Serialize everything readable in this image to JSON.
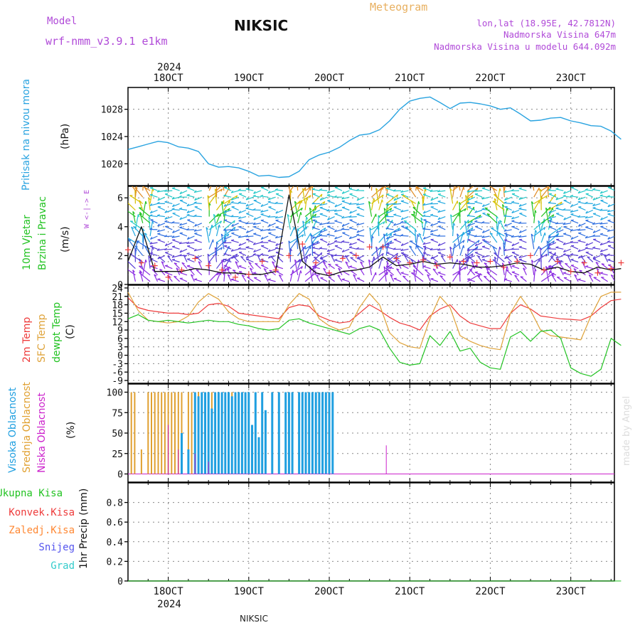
{
  "header": {
    "model_label": "Model",
    "model_value": "wrf-nmm_v3.9.1  e1km",
    "station": "NIKSIC",
    "product": "Meteogram",
    "lonlat": "lon,lat (18.95E, 42.7812N)",
    "elevation": "Nadmorska Visina 647m",
    "model_elevation": "Nadmorska Visina u modelu 644.092m",
    "footer_station": "NIKSIC",
    "watermark": "made by Angel"
  },
  "colors": {
    "pressure": "#29a3e0",
    "temp2m": "#ee3b3b",
    "sfc_temp": "#dfa33a",
    "dewpoint": "#22c322",
    "high_cloud": "#1f9fe0",
    "mid_cloud": "#e0a030",
    "low_cloud": "#cc22cc",
    "precip_total": "#22c322",
    "precip_conv": "#ee3b3b",
    "precip_frozen": "#ff8833",
    "snow": "#5555ee",
    "graupel": "#33cccc",
    "gust": "#ee3b3b",
    "wind_speed": "#111111",
    "header_purple": "#b04ad8",
    "header_orange": "#e8b060"
  },
  "time_axis": {
    "year": "2024",
    "day_labels": [
      "18OCT",
      "19OCT",
      "20OCT",
      "21OCT",
      "22OCT",
      "23OCT"
    ],
    "day_starts": [
      0,
      24,
      48,
      72,
      96,
      120
    ],
    "range_hours": [
      -12,
      133
    ]
  },
  "chart_data": [
    {
      "type": "line",
      "panel": "pressure",
      "title": "Pritisak na nivou mora",
      "ylabel": "(hPa)",
      "ylim": [
        1016.8,
        1031.2
      ],
      "yticks": [
        1020,
        1024,
        1028
      ],
      "grid": true,
      "series": [
        {
          "name": "Pritisak na nivou mora",
          "x": [
            -12,
            -9,
            -6,
            -3,
            0,
            3,
            6,
            9,
            12,
            15,
            18,
            21,
            24,
            27,
            30,
            33,
            36,
            39,
            42,
            45,
            48,
            51,
            54,
            57,
            60,
            63,
            66,
            69,
            72,
            75,
            78,
            81,
            84,
            87,
            90,
            93,
            96,
            99,
            102,
            105,
            108,
            111,
            114,
            117,
            120,
            123,
            126,
            129,
            132,
            135
          ],
          "values": [
            1022.1,
            1022.5,
            1022.9,
            1023.3,
            1023.1,
            1022.5,
            1022.3,
            1021.8,
            1020.0,
            1019.5,
            1019.6,
            1019.4,
            1018.9,
            1018.2,
            1018.3,
            1018.0,
            1018.1,
            1018.9,
            1020.6,
            1021.3,
            1021.7,
            1022.4,
            1023.4,
            1024.2,
            1024.4,
            1025.0,
            1026.3,
            1028.0,
            1029.2,
            1029.6,
            1029.8,
            1029.0,
            1028.1,
            1028.9,
            1029.0,
            1028.8,
            1028.5,
            1028.0,
            1028.2,
            1027.3,
            1026.3,
            1026.4,
            1026.7,
            1026.8,
            1026.3,
            1026.0,
            1025.6,
            1025.5,
            1024.8,
            1023.6
          ]
        }
      ]
    },
    {
      "type": "line",
      "panel": "wind",
      "title": "10m Vjetar Brzina i Pravac",
      "ylabel": "(m/s)",
      "compass": "W <-|-> E",
      "ylim": [
        0,
        6.8
      ],
      "yticks": [
        0,
        2,
        4,
        6
      ],
      "grid": true,
      "series": [
        {
          "name": "Brzina",
          "x": [
            -12,
            -8,
            -4,
            0,
            4,
            8,
            12,
            16,
            20,
            24,
            28,
            32,
            36,
            40,
            44,
            48,
            52,
            56,
            60,
            64,
            68,
            72,
            76,
            80,
            84,
            88,
            92,
            96,
            100,
            104,
            108,
            112,
            116,
            120,
            124,
            128,
            132,
            135
          ],
          "values": [
            1.6,
            4.0,
            0.9,
            0.9,
            0.9,
            1.1,
            1.0,
            0.8,
            0.8,
            0.7,
            0.7,
            0.9,
            6.2,
            1.6,
            0.8,
            0.6,
            0.9,
            1.0,
            1.2,
            1.9,
            1.3,
            1.4,
            1.6,
            1.4,
            1.5,
            1.4,
            1.2,
            1.2,
            1.3,
            1.5,
            1.4,
            1.0,
            1.2,
            0.9,
            0.8,
            1.2,
            1.0,
            1.1
          ]
        },
        {
          "name": "Udar",
          "x": [
            -12,
            -8,
            -4,
            0,
            4,
            8,
            12,
            16,
            20,
            24,
            28,
            32,
            36,
            40,
            44,
            48,
            52,
            56,
            60,
            64,
            68,
            72,
            76,
            80,
            84,
            88,
            92,
            96,
            100,
            104,
            108,
            112,
            116,
            120,
            124,
            128,
            132,
            135
          ],
          "values": [
            2.4,
            1.5,
            1.3,
            0.5,
            1.0,
            1.8,
            1.3,
            1.0,
            0.5,
            0.7,
            1.6,
            1.0,
            2.0,
            2.8,
            1.5,
            0.8,
            1.8,
            2.0,
            2.6,
            2.6,
            1.8,
            1.5,
            1.7,
            1.3,
            1.9,
            1.6,
            1.5,
            1.6,
            1.2,
            1.6,
            2.0,
            1.0,
            1.6,
            0.9,
            1.5,
            0.8,
            1.1,
            1.5
          ]
        }
      ]
    },
    {
      "type": "line",
      "panel": "temperature",
      "ylabel": "(C)",
      "series_labels": [
        "2m Temp",
        "SFC Temp",
        "dewpt Temp"
      ],
      "ylim": [
        -10,
        25
      ],
      "yticks": [
        -9,
        -6,
        -3,
        0,
        3,
        6,
        9,
        12,
        15,
        18,
        21,
        24
      ],
      "grid": true,
      "series": [
        {
          "name": "2m Temp",
          "x": [
            -12,
            -9,
            -6,
            -3,
            0,
            3,
            6,
            9,
            12,
            15,
            18,
            21,
            24,
            27,
            30,
            33,
            36,
            39,
            42,
            45,
            48,
            51,
            54,
            57,
            60,
            63,
            66,
            69,
            72,
            75,
            78,
            81,
            84,
            87,
            90,
            93,
            96,
            99,
            102,
            105,
            108,
            111,
            114,
            117,
            120,
            123,
            126,
            129,
            132,
            135
          ],
          "values": [
            20.5,
            17.0,
            16.0,
            15.5,
            15.0,
            15.0,
            14.5,
            15.0,
            18.0,
            18.5,
            17.5,
            15.0,
            14.5,
            14.0,
            13.5,
            13.0,
            17.0,
            18.0,
            17.5,
            14.0,
            12.5,
            11.5,
            12.0,
            15.0,
            18.0,
            16.0,
            13.5,
            11.5,
            10.5,
            9.0,
            14.0,
            16.5,
            18.0,
            14.0,
            11.5,
            10.5,
            9.5,
            9.5,
            15.0,
            18.0,
            16.5,
            14.0,
            13.5,
            13.0,
            12.8,
            12.5,
            14.0,
            17.0,
            19.5,
            20.0
          ]
        },
        {
          "name": "SFC Temp",
          "x": [
            -12,
            -9,
            -6,
            -3,
            0,
            3,
            6,
            9,
            12,
            15,
            18,
            21,
            24,
            27,
            30,
            33,
            36,
            39,
            42,
            45,
            48,
            51,
            54,
            57,
            60,
            63,
            66,
            69,
            72,
            75,
            78,
            81,
            84,
            87,
            90,
            93,
            96,
            99,
            102,
            105,
            108,
            111,
            114,
            117,
            120,
            123,
            126,
            129,
            132,
            135
          ],
          "values": [
            22.5,
            16.0,
            12.5,
            12.0,
            11.5,
            12.0,
            14.0,
            19.0,
            22.0,
            20.0,
            15.5,
            13.0,
            12.0,
            12.0,
            12.0,
            12.0,
            18.0,
            22.0,
            20.0,
            13.0,
            10.5,
            9.0,
            10.0,
            17.0,
            22.0,
            18.0,
            8.0,
            4.5,
            3.0,
            2.5,
            13.0,
            21.0,
            17.0,
            7.0,
            5.0,
            3.5,
            2.5,
            2.0,
            15.0,
            21.0,
            16.0,
            9.0,
            7.0,
            6.5,
            6.0,
            5.5,
            14.0,
            21.0,
            22.5,
            22.5
          ]
        },
        {
          "name": "dewpt Temp",
          "x": [
            -12,
            -9,
            -6,
            -3,
            0,
            3,
            6,
            9,
            12,
            15,
            18,
            21,
            24,
            27,
            30,
            33,
            36,
            39,
            42,
            45,
            48,
            51,
            54,
            57,
            60,
            63,
            66,
            69,
            72,
            75,
            78,
            81,
            84,
            87,
            90,
            93,
            96,
            99,
            102,
            105,
            108,
            111,
            114,
            117,
            120,
            123,
            126,
            129,
            132,
            135
          ],
          "values": [
            13.0,
            14.5,
            12.5,
            12.0,
            12.5,
            12.0,
            11.5,
            12.0,
            12.5,
            12.0,
            12.0,
            11.0,
            10.5,
            9.5,
            9.0,
            9.5,
            12.5,
            13.0,
            11.5,
            10.5,
            9.5,
            8.5,
            7.5,
            9.5,
            10.5,
            9.0,
            2.5,
            -2.5,
            -3.5,
            -3.0,
            7.0,
            3.5,
            8.5,
            1.5,
            2.5,
            -2.5,
            -4.5,
            -5.0,
            6.5,
            8.5,
            5.0,
            8.5,
            9.0,
            6.0,
            -4.5,
            -6.5,
            -7.5,
            -5.0,
            6.0,
            3.5
          ]
        }
      ]
    },
    {
      "type": "bar",
      "panel": "cloud",
      "ylabel": "(%)",
      "series_labels": [
        "Visoka Oblacnost",
        "Srednja Oblacnost",
        "Niska Oblacnost"
      ],
      "ylim": [
        -10,
        110
      ],
      "yticks": [
        0,
        25,
        50,
        75,
        100
      ],
      "grid": true,
      "series": [
        {
          "name": "Visoka Oblacnost",
          "x": [
            4,
            6,
            8,
            9,
            10,
            11,
            12,
            13,
            14,
            15,
            16,
            17,
            18,
            19,
            20,
            21,
            22,
            23,
            24,
            25,
            26,
            27,
            28,
            29,
            31,
            33,
            35,
            36,
            37,
            39,
            40,
            41,
            42,
            43,
            44,
            45,
            46,
            47,
            48,
            49
          ],
          "values": [
            50,
            30,
            100,
            95,
            100,
            100,
            100,
            80,
            100,
            100,
            100,
            100,
            100,
            95,
            100,
            100,
            100,
            100,
            100,
            60,
            100,
            45,
            100,
            78,
            100,
            100,
            100,
            100,
            100,
            100,
            100,
            100,
            100,
            100,
            100,
            100,
            100,
            100,
            100,
            100
          ]
        },
        {
          "name": "Srednja Oblacnost",
          "x": [
            -11,
            -10,
            -8,
            -6,
            -5,
            -4,
            -3,
            -2,
            -1,
            0,
            1,
            2,
            3,
            4,
            6,
            7,
            8,
            9,
            10,
            11,
            12,
            13,
            14,
            15,
            16,
            17,
            18,
            19,
            20,
            21,
            22,
            23,
            24,
            25,
            26
          ],
          "values": [
            100,
            100,
            30,
            100,
            100,
            100,
            100,
            100,
            100,
            100,
            100,
            100,
            100,
            100,
            100,
            100,
            100,
            100,
            100,
            100,
            100,
            100,
            90,
            100,
            100,
            100,
            100,
            100,
            100,
            75,
            100,
            100,
            100,
            35,
            100
          ]
        },
        {
          "name": "Niska Oblacnost",
          "x": [
            0,
            3,
            8,
            12,
            65
          ],
          "values": [
            60,
            30,
            25,
            15,
            35
          ]
        }
      ]
    },
    {
      "type": "line",
      "panel": "precip",
      "ylabel": "1hr Precip (mm)",
      "series_labels": [
        "Ukupna Kisa",
        "Konvek.Kisa",
        "Zaledj.Kisa",
        "Snijeg",
        "Grad"
      ],
      "ylim": [
        0,
        1.0
      ],
      "yticks": [
        0,
        0.2,
        0.4,
        0.6,
        0.8
      ],
      "grid": true,
      "series": [
        {
          "name": "Ukupna Kisa",
          "x": [
            -12,
            135
          ],
          "values": [
            0,
            0
          ]
        }
      ]
    }
  ]
}
